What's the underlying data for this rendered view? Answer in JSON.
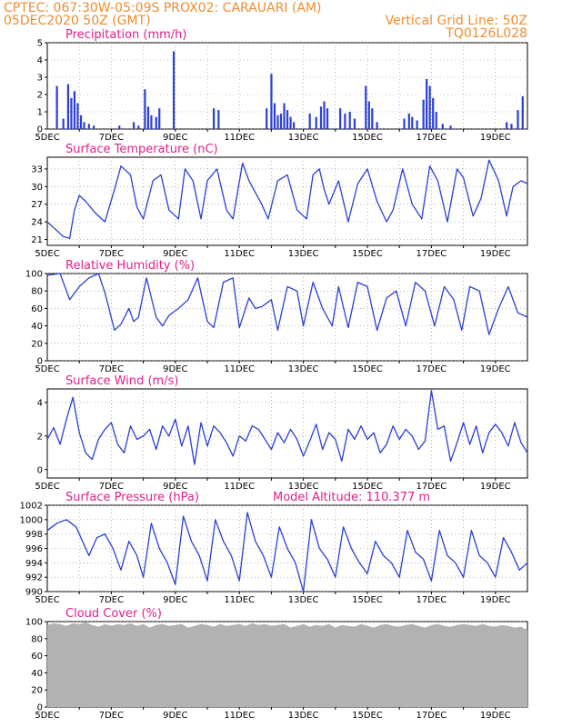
{
  "header": {
    "line1": "CPTEC:    067:30W-05:09S    PROX02: CARAUARI (AM)",
    "line2_left": "05DEC2020 50Z (GMT)",
    "line2_right": "Vertical Grid Line: 50Z",
    "line3_right": "TQ0126L028"
  },
  "colors": {
    "header": "#f08c2c",
    "panel_title": "#e0208c",
    "line": "#2b3fd6",
    "cloud": "#b2b2b2",
    "grid": "#888888"
  },
  "x_labels": [
    "5DEC",
    "7DEC",
    "9DEC",
    "11DEC",
    "13DEC",
    "15DEC",
    "17DEC",
    "19DEC"
  ],
  "x_first_sublabel": "2020",
  "chart_data": [
    {
      "id": "precip",
      "type": "bar",
      "title": "Precipitation (mm/h)",
      "ylim": [
        0,
        5
      ],
      "yticks": [
        0,
        1,
        2,
        3,
        4,
        5
      ],
      "x_range_days": [
        5,
        20
      ],
      "grid": true,
      "bars": [
        {
          "x": 5.3,
          "y": 2.5
        },
        {
          "x": 5.5,
          "y": 0.6
        },
        {
          "x": 5.65,
          "y": 2.6
        },
        {
          "x": 5.75,
          "y": 1.8
        },
        {
          "x": 5.85,
          "y": 2.2
        },
        {
          "x": 5.95,
          "y": 1.5
        },
        {
          "x": 6.05,
          "y": 0.8
        },
        {
          "x": 6.15,
          "y": 0.4
        },
        {
          "x": 6.3,
          "y": 0.3
        },
        {
          "x": 6.45,
          "y": 0.2
        },
        {
          "x": 7.25,
          "y": 0.2
        },
        {
          "x": 7.7,
          "y": 0.4
        },
        {
          "x": 7.85,
          "y": 0.2
        },
        {
          "x": 8.05,
          "y": 2.3
        },
        {
          "x": 8.15,
          "y": 1.3
        },
        {
          "x": 8.25,
          "y": 0.8
        },
        {
          "x": 8.4,
          "y": 0.7
        },
        {
          "x": 8.5,
          "y": 1.2
        },
        {
          "x": 8.95,
          "y": 4.5
        },
        {
          "x": 10.2,
          "y": 1.2
        },
        {
          "x": 10.35,
          "y": 1.1
        },
        {
          "x": 11.85,
          "y": 1.2
        },
        {
          "x": 12.0,
          "y": 3.2
        },
        {
          "x": 12.1,
          "y": 1.5
        },
        {
          "x": 12.2,
          "y": 0.8
        },
        {
          "x": 12.3,
          "y": 0.9
        },
        {
          "x": 12.4,
          "y": 1.5
        },
        {
          "x": 12.5,
          "y": 1.1
        },
        {
          "x": 12.6,
          "y": 0.7
        },
        {
          "x": 12.7,
          "y": 0.4
        },
        {
          "x": 13.2,
          "y": 0.9
        },
        {
          "x": 13.4,
          "y": 0.7
        },
        {
          "x": 13.55,
          "y": 1.3
        },
        {
          "x": 13.65,
          "y": 1.6
        },
        {
          "x": 13.75,
          "y": 1.2
        },
        {
          "x": 14.15,
          "y": 1.2
        },
        {
          "x": 14.3,
          "y": 0.9
        },
        {
          "x": 14.45,
          "y": 1.0
        },
        {
          "x": 14.6,
          "y": 0.6
        },
        {
          "x": 14.95,
          "y": 2.5
        },
        {
          "x": 15.05,
          "y": 1.6
        },
        {
          "x": 15.15,
          "y": 1.2
        },
        {
          "x": 15.3,
          "y": 0.4
        },
        {
          "x": 16.15,
          "y": 0.6
        },
        {
          "x": 16.3,
          "y": 0.9
        },
        {
          "x": 16.4,
          "y": 0.7
        },
        {
          "x": 16.55,
          "y": 0.5
        },
        {
          "x": 16.75,
          "y": 1.7
        },
        {
          "x": 16.85,
          "y": 2.9
        },
        {
          "x": 16.95,
          "y": 2.5
        },
        {
          "x": 17.05,
          "y": 1.8
        },
        {
          "x": 17.15,
          "y": 1.0
        },
        {
          "x": 17.35,
          "y": 0.3
        },
        {
          "x": 17.6,
          "y": 0.2
        },
        {
          "x": 19.35,
          "y": 0.4
        },
        {
          "x": 19.5,
          "y": 0.3
        },
        {
          "x": 19.7,
          "y": 1.1
        },
        {
          "x": 19.85,
          "y": 1.9
        }
      ]
    },
    {
      "id": "temp",
      "type": "line",
      "title": "Surface Temperature (nC)",
      "ylim": [
        20,
        35
      ],
      "yticks": [
        21,
        24,
        27,
        30,
        33
      ],
      "x_range_days": [
        5,
        20
      ],
      "grid": true,
      "x": [
        5.0,
        5.3,
        5.5,
        5.7,
        5.85,
        6.0,
        6.2,
        6.5,
        6.8,
        7.1,
        7.3,
        7.6,
        7.8,
        8.0,
        8.3,
        8.55,
        8.8,
        9.1,
        9.3,
        9.55,
        9.8,
        10.0,
        10.3,
        10.6,
        10.8,
        11.1,
        11.3,
        11.5,
        11.7,
        11.9,
        12.2,
        12.5,
        12.8,
        13.1,
        13.3,
        13.5,
        13.65,
        13.8,
        14.1,
        14.4,
        14.7,
        15.0,
        15.3,
        15.6,
        15.8,
        16.1,
        16.4,
        16.7,
        16.95,
        17.2,
        17.5,
        17.8,
        18.0,
        18.3,
        18.55,
        18.8,
        19.1,
        19.35,
        19.55,
        19.8,
        20.0
      ],
      "y": [
        24.0,
        22.5,
        21.5,
        21.2,
        26.0,
        28.5,
        27.5,
        25.5,
        24.0,
        29.5,
        33.5,
        32.0,
        26.5,
        24.5,
        31.0,
        32.0,
        26.0,
        24.5,
        33.0,
        31.0,
        24.5,
        31.0,
        33.0,
        26.0,
        24.5,
        34.0,
        31.0,
        29.0,
        27.0,
        24.5,
        31.0,
        32.0,
        26.0,
        24.5,
        32.0,
        33.0,
        29.5,
        27.0,
        31.0,
        24.0,
        30.5,
        33.0,
        27.5,
        24.0,
        26.0,
        33.0,
        27.0,
        24.5,
        33.5,
        31.0,
        24.0,
        33.0,
        31.5,
        25.0,
        28.0,
        34.5,
        31.0,
        25.0,
        30.0,
        31.0,
        30.5
      ]
    },
    {
      "id": "rh",
      "type": "line",
      "title": "Relative Humidity (%)",
      "ylim": [
        0,
        100
      ],
      "yticks": [
        0,
        20,
        40,
        60,
        80,
        100
      ],
      "x_range_days": [
        5,
        20
      ],
      "grid": true,
      "x": [
        5.0,
        5.4,
        5.7,
        6.0,
        6.3,
        6.6,
        6.8,
        7.1,
        7.3,
        7.55,
        7.7,
        7.85,
        8.1,
        8.4,
        8.6,
        8.8,
        9.1,
        9.4,
        9.7,
        10.0,
        10.2,
        10.5,
        10.8,
        11.0,
        11.3,
        11.5,
        11.7,
        12.0,
        12.2,
        12.5,
        12.8,
        13.0,
        13.3,
        13.6,
        13.9,
        14.1,
        14.4,
        14.7,
        15.0,
        15.3,
        15.6,
        15.9,
        16.2,
        16.5,
        16.8,
        17.1,
        17.4,
        17.7,
        17.95,
        18.2,
        18.5,
        18.8,
        19.1,
        19.4,
        19.7,
        20.0
      ],
      "y": [
        98,
        100,
        70,
        85,
        95,
        100,
        78,
        35,
        42,
        60,
        45,
        50,
        95,
        50,
        40,
        52,
        60,
        70,
        95,
        45,
        38,
        90,
        95,
        38,
        72,
        60,
        62,
        70,
        35,
        85,
        80,
        40,
        90,
        60,
        40,
        85,
        38,
        90,
        85,
        35,
        72,
        80,
        40,
        90,
        80,
        40,
        85,
        70,
        35,
        85,
        80,
        30,
        60,
        85,
        55,
        50
      ]
    },
    {
      "id": "wind",
      "type": "line",
      "title": "Surface Wind (m/s)",
      "ylim": [
        -0.5,
        4.8
      ],
      "yticks": [
        0,
        2,
        4
      ],
      "x_range_days": [
        5,
        20
      ],
      "grid": true,
      "x": [
        5.0,
        5.2,
        5.4,
        5.6,
        5.8,
        6.0,
        6.2,
        6.4,
        6.6,
        6.8,
        7.0,
        7.2,
        7.4,
        7.6,
        7.8,
        8.0,
        8.2,
        8.4,
        8.6,
        8.8,
        9.0,
        9.2,
        9.4,
        9.6,
        9.8,
        10.0,
        10.2,
        10.4,
        10.6,
        10.8,
        11.0,
        11.2,
        11.4,
        11.6,
        11.8,
        12.0,
        12.2,
        12.4,
        12.6,
        12.8,
        13.0,
        13.2,
        13.4,
        13.6,
        13.8,
        14.0,
        14.2,
        14.4,
        14.6,
        14.8,
        15.0,
        15.2,
        15.4,
        15.6,
        15.8,
        16.0,
        16.2,
        16.4,
        16.6,
        16.8,
        17.0,
        17.2,
        17.4,
        17.6,
        17.8,
        18.0,
        18.2,
        18.4,
        18.6,
        18.8,
        19.0,
        19.2,
        19.4,
        19.6,
        19.8,
        20.0
      ],
      "y": [
        1.8,
        2.5,
        1.5,
        3.0,
        4.3,
        2.2,
        1.0,
        0.6,
        1.8,
        2.4,
        2.8,
        1.5,
        1.0,
        2.6,
        1.8,
        2.0,
        2.4,
        1.2,
        2.6,
        2.0,
        3.0,
        1.4,
        2.6,
        0.3,
        2.8,
        1.4,
        2.6,
        2.2,
        1.6,
        0.8,
        2.0,
        1.7,
        2.6,
        2.4,
        1.8,
        1.2,
        2.2,
        1.6,
        2.4,
        1.8,
        0.8,
        1.7,
        2.7,
        1.2,
        2.2,
        1.8,
        0.5,
        2.4,
        1.8,
        2.6,
        1.8,
        2.2,
        1.0,
        1.5,
        2.6,
        1.8,
        2.4,
        2.0,
        1.2,
        1.7,
        4.7,
        2.4,
        2.6,
        0.5,
        1.6,
        2.8,
        1.5,
        2.6,
        1.0,
        2.2,
        2.7,
        2.2,
        1.4,
        2.8,
        1.6,
        1.0
      ]
    },
    {
      "id": "pres",
      "type": "line",
      "title": "Surface Pressure (hPa)",
      "annotation": "Model Altitude: 110.377 m",
      "ylim": [
        990,
        1002
      ],
      "yticks": [
        990,
        992,
        994,
        996,
        998,
        1000,
        1002
      ],
      "x_range_days": [
        5,
        20
      ],
      "grid": true,
      "x": [
        5.0,
        5.3,
        5.6,
        5.9,
        6.1,
        6.3,
        6.55,
        6.8,
        7.05,
        7.3,
        7.55,
        7.8,
        8.0,
        8.25,
        8.5,
        8.75,
        9.0,
        9.25,
        9.5,
        9.75,
        10.0,
        10.25,
        10.5,
        10.75,
        11.0,
        11.25,
        11.5,
        11.75,
        12.0,
        12.25,
        12.5,
        12.75,
        13.0,
        13.25,
        13.5,
        13.75,
        14.0,
        14.25,
        14.5,
        14.75,
        15.0,
        15.25,
        15.5,
        15.75,
        16.0,
        16.25,
        16.5,
        16.75,
        17.0,
        17.25,
        17.5,
        17.75,
        18.0,
        18.25,
        18.5,
        18.75,
        19.0,
        19.25,
        19.5,
        19.75,
        20.0
      ],
      "y": [
        998.5,
        999.5,
        1000.0,
        999.0,
        997.0,
        995.0,
        997.5,
        998.0,
        996.0,
        993.0,
        997.0,
        995.0,
        992.0,
        999.5,
        996.0,
        994.0,
        991.0,
        1000.5,
        997.0,
        995.0,
        991.5,
        1000.0,
        997.0,
        995.0,
        991.5,
        1001.0,
        997.0,
        995.0,
        992.0,
        999.0,
        996.0,
        994.0,
        990.0,
        1000.0,
        996.0,
        994.5,
        992.0,
        999.0,
        996.0,
        994.0,
        992.5,
        997.0,
        995.0,
        994.0,
        992.0,
        998.5,
        995.5,
        994.5,
        991.5,
        998.5,
        995.0,
        994.0,
        992.0,
        998.5,
        995.0,
        994.0,
        992.0,
        997.5,
        995.5,
        993.0,
        994.0
      ]
    },
    {
      "id": "cloud",
      "type": "area",
      "title": "Cloud Cover (%)",
      "ylim": [
        0,
        100
      ],
      "yticks": [
        0,
        20,
        40,
        60,
        80,
        100
      ],
      "x_range_days": [
        5,
        20
      ],
      "grid": true,
      "x": [
        5.0,
        5.2,
        5.4,
        5.6,
        5.8,
        6.0,
        6.2,
        6.4,
        6.6,
        6.8,
        7.0,
        7.2,
        7.4,
        7.6,
        7.8,
        8.0,
        8.2,
        8.4,
        8.6,
        8.8,
        9.0,
        9.2,
        9.4,
        9.6,
        9.8,
        10.0,
        10.2,
        10.4,
        10.6,
        10.8,
        11.0,
        11.2,
        11.4,
        11.6,
        11.8,
        12.0,
        12.2,
        12.4,
        12.6,
        12.8,
        13.0,
        13.2,
        13.4,
        13.6,
        13.8,
        14.0,
        14.2,
        14.4,
        14.6,
        14.8,
        15.0,
        15.2,
        15.4,
        15.6,
        15.8,
        16.0,
        16.2,
        16.4,
        16.6,
        16.8,
        17.0,
        17.2,
        17.4,
        17.6,
        17.8,
        18.0,
        18.2,
        18.4,
        18.6,
        18.8,
        19.0,
        19.2,
        19.4,
        19.6,
        19.8,
        20.0
      ],
      "y": [
        96,
        98,
        97,
        95,
        98,
        97,
        99,
        96,
        94,
        97,
        95,
        97,
        96,
        98,
        95,
        97,
        93,
        96,
        97,
        95,
        96,
        97,
        93,
        95,
        97,
        96,
        94,
        97,
        95,
        96,
        97,
        95,
        98,
        96,
        97,
        95,
        96,
        97,
        93,
        95,
        97,
        94,
        96,
        95,
        97,
        93,
        96,
        95,
        94,
        97,
        95,
        93,
        96,
        97,
        95,
        94,
        96,
        97,
        95,
        93,
        96,
        97,
        95,
        94,
        96,
        97,
        96,
        95,
        97,
        95,
        94,
        96,
        95,
        93,
        94,
        90
      ]
    }
  ]
}
